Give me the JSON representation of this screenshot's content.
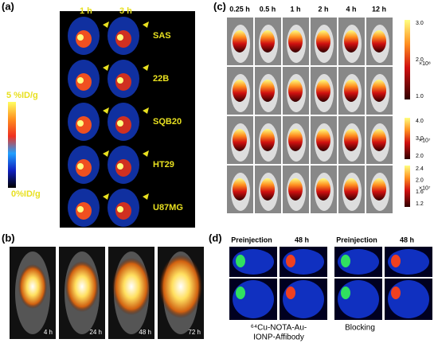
{
  "panel_a": {
    "label": "(a)",
    "times": [
      "1 h",
      "3 h"
    ],
    "rows": [
      "SAS",
      "22B",
      "SQB20",
      "HT29",
      "U87MG"
    ],
    "scale_max": "5 %ID/g",
    "scale_min": "0%ID/g"
  },
  "panel_b": {
    "label": "(b)",
    "times": [
      "4 h",
      "24 h",
      "48 h",
      "72 h"
    ]
  },
  "panel_c": {
    "label": "(c)",
    "times": [
      "0.25 h",
      "0.5 h",
      "1 h",
      "2 h",
      "4 h",
      "12 h"
    ],
    "scales": [
      {
        "ticks": [
          "3.0",
          "2.0",
          "1.0"
        ],
        "unit": "×10⁸"
      },
      {
        "ticks": [
          "4.0",
          "3.0",
          "2.0"
        ],
        "unit": "×10⁷"
      },
      {
        "ticks": [
          "2.4",
          "2.0",
          "1.6",
          "1.2"
        ],
        "unit": "×10⁷"
      }
    ]
  },
  "panel_d": {
    "label": "(d)",
    "headers": [
      "Preinjection",
      "48 h",
      "Preinjection",
      "48 h"
    ],
    "groups": [
      [
        "⁶⁴Cu-NOTA-Au-",
        "IONP-Affibody"
      ],
      [
        "Blocking"
      ]
    ]
  }
}
